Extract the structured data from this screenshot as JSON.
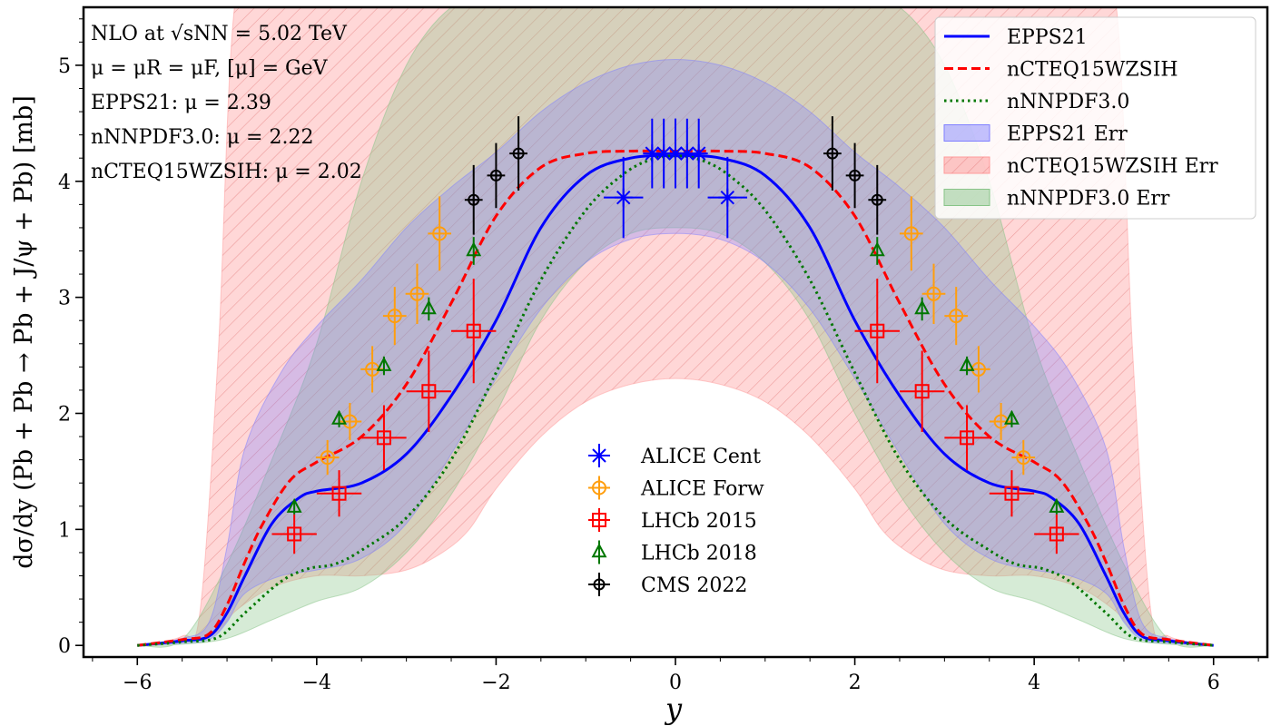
{
  "chart_data": {
    "type": "line",
    "title": "",
    "xlabel": "y",
    "ylabel": "dσ/dy (Pb + Pb → Pb + J/ψ + Pb) [mb]",
    "xlim": [
      -6.6,
      6.6
    ],
    "ylim": [
      -0.1,
      5.5
    ],
    "xticks": [
      -6,
      -4,
      -2,
      0,
      2,
      4,
      6
    ],
    "yticks": [
      0,
      1,
      2,
      3,
      4,
      5
    ],
    "xtick_labels": [
      "−6",
      "−4",
      "−2",
      "0",
      "2",
      "4",
      "6"
    ],
    "ytick_labels": [
      "0",
      "1",
      "2",
      "3",
      "4",
      "5"
    ],
    "annotations": [
      "NLO at √sNN = 5.02 TeV",
      "μ = μR = μF, [μ] = GeV",
      "EPPS21: μ = 2.39",
      "nNNPDF3.0: μ = 2.22",
      "nCTEQ15WZSIH: μ = 2.02"
    ],
    "curves": [
      {
        "name": "EPPS21",
        "color": "#0000ff",
        "style": "solid",
        "x": [
          0,
          0.5,
          1.0,
          1.5,
          2.0,
          2.5,
          3.0,
          3.5,
          4.0,
          4.2,
          4.5,
          4.8,
          5.0,
          5.2,
          5.5,
          6.0
        ],
        "y": [
          4.22,
          4.2,
          4.05,
          3.6,
          2.8,
          2.15,
          1.65,
          1.4,
          1.33,
          1.27,
          1.05,
          0.6,
          0.28,
          0.08,
          0.04,
          0.0
        ]
      },
      {
        "name": "nCTEQ15WZSIH",
        "color": "#ff0000",
        "style": "dashed",
        "x": [
          0,
          0.5,
          1.0,
          1.5,
          2.0,
          2.5,
          3.0,
          3.5,
          4.0,
          4.3,
          4.6,
          4.8,
          5.0,
          5.2,
          5.5,
          6.0
        ],
        "y": [
          4.26,
          4.26,
          4.24,
          4.12,
          3.7,
          2.95,
          2.25,
          1.8,
          1.58,
          1.42,
          1.05,
          0.72,
          0.35,
          0.1,
          0.05,
          0.0
        ]
      },
      {
        "name": "nNNPDF3.0",
        "color": "#007700",
        "style": "dotted",
        "x": [
          0,
          0.3,
          0.6,
          1.0,
          1.5,
          2.0,
          2.5,
          3.0,
          3.5,
          3.8,
          4.1,
          4.4,
          4.8,
          5.1,
          5.5,
          6.0
        ],
        "y": [
          4.22,
          4.18,
          4.05,
          3.75,
          3.15,
          2.35,
          1.6,
          1.1,
          0.82,
          0.7,
          0.66,
          0.55,
          0.28,
          0.07,
          0.03,
          0.0
        ]
      }
    ],
    "bands": [
      {
        "name": "EPPS21 Err",
        "color": "#8080ff",
        "opacity": 0.32,
        "hatch": false,
        "x": [
          0,
          0.5,
          1.0,
          1.5,
          2.0,
          2.5,
          3.0,
          3.5,
          4.0,
          4.4,
          4.8,
          5.0,
          5.2,
          5.5,
          6.0
        ],
        "upper": [
          5.05,
          5.0,
          4.85,
          4.6,
          4.25,
          3.95,
          3.6,
          3.15,
          2.75,
          2.35,
          1.7,
          0.85,
          0.2,
          0.06,
          0.0
        ],
        "lower": [
          3.55,
          3.5,
          3.3,
          2.9,
          2.3,
          1.65,
          1.05,
          0.75,
          0.65,
          0.6,
          0.45,
          0.2,
          0.05,
          0.02,
          0.0
        ]
      },
      {
        "name": "nCTEQ15WZSIH Err",
        "color": "#ff9a9a",
        "opacity": 0.4,
        "hatch": true,
        "x": [
          0,
          0.5,
          1.0,
          1.5,
          2.0,
          2.3,
          2.6,
          3.0,
          3.5,
          4.0,
          4.5,
          4.9,
          5.1,
          5.3,
          5.5,
          6.0
        ],
        "upper": [
          5.6,
          5.6,
          5.6,
          5.6,
          5.6,
          5.6,
          5.6,
          5.6,
          5.6,
          5.6,
          5.6,
          5.6,
          2.5,
          0.3,
          0.08,
          0.0
        ],
        "lower": [
          2.3,
          2.25,
          2.1,
          1.8,
          1.35,
          1.0,
          0.8,
          0.65,
          0.6,
          0.6,
          0.5,
          0.3,
          0.12,
          0.05,
          0.03,
          0.0
        ]
      },
      {
        "name": "nNNPDF3.0 Err",
        "color": "#88c488",
        "opacity": 0.34,
        "hatch": false,
        "x": [
          0,
          0.5,
          1.0,
          1.5,
          2.0,
          2.5,
          3.0,
          3.5,
          4.0,
          4.5,
          5.0,
          5.5,
          6.0
        ],
        "upper": [
          5.6,
          5.6,
          5.6,
          5.6,
          5.6,
          5.5,
          5.0,
          4.0,
          2.6,
          1.6,
          0.7,
          0.05,
          0.0
        ],
        "lower": [
          3.6,
          3.55,
          3.3,
          2.8,
          2.0,
          1.3,
          0.8,
          0.5,
          0.38,
          0.22,
          0.06,
          0.01,
          0.0
        ]
      }
    ],
    "datasets": [
      {
        "name": "ALICE Cent",
        "color": "#0000ff",
        "marker": "star",
        "points": [
          {
            "x": 0.0,
            "xerr": 0.0,
            "y": 4.24,
            "yerr": 0.3
          },
          {
            "x": 0.13,
            "xerr": 0.0,
            "y": 4.24,
            "yerr": 0.3
          },
          {
            "x": 0.26,
            "xerr": 0.0,
            "y": 4.24,
            "yerr": 0.3
          },
          {
            "x": 0.58,
            "xerr": 0.22,
            "y": 3.86,
            "yerr": 0.35
          }
        ]
      },
      {
        "name": "ALICE Forw",
        "color": "#ff9e0e",
        "marker": "circle",
        "points": [
          {
            "x": 2.63,
            "xerr": 0.13,
            "y": 3.55,
            "yerr": 0.32
          },
          {
            "x": 2.88,
            "xerr": 0.13,
            "y": 3.03,
            "yerr": 0.26
          },
          {
            "x": 3.13,
            "xerr": 0.13,
            "y": 2.84,
            "yerr": 0.25
          },
          {
            "x": 3.38,
            "xerr": 0.13,
            "y": 2.38,
            "yerr": 0.2
          },
          {
            "x": 3.63,
            "xerr": 0.13,
            "y": 1.93,
            "yerr": 0.16
          },
          {
            "x": 3.88,
            "xerr": 0.13,
            "y": 1.62,
            "yerr": 0.15
          }
        ]
      },
      {
        "name": "LHCb 2015",
        "color": "#ff0000",
        "marker": "square",
        "points": [
          {
            "x": 2.25,
            "xerr": 0.25,
            "y": 2.71,
            "yerr": 0.45
          },
          {
            "x": 2.75,
            "xerr": 0.25,
            "y": 2.19,
            "yerr": 0.35
          },
          {
            "x": 3.25,
            "xerr": 0.25,
            "y": 1.79,
            "yerr": 0.28
          },
          {
            "x": 3.75,
            "xerr": 0.25,
            "y": 1.31,
            "yerr": 0.2
          },
          {
            "x": 4.25,
            "xerr": 0.25,
            "y": 0.96,
            "yerr": 0.17
          }
        ]
      },
      {
        "name": "LHCb 2018",
        "color": "#007700",
        "marker": "triangle",
        "points": [
          {
            "x": 2.25,
            "xerr": 0.0,
            "y": 3.4,
            "yerr": 0.12
          },
          {
            "x": 2.75,
            "xerr": 0.0,
            "y": 2.9,
            "yerr": 0.1
          },
          {
            "x": 3.25,
            "xerr": 0.0,
            "y": 2.41,
            "yerr": 0.08
          },
          {
            "x": 3.75,
            "xerr": 0.0,
            "y": 1.95,
            "yerr": 0.07
          },
          {
            "x": 4.25,
            "xerr": 0.0,
            "y": 1.19,
            "yerr": 0.06
          }
        ]
      },
      {
        "name": "CMS 2022",
        "color": "#000000",
        "marker": "plus",
        "points": [
          {
            "x": 1.75,
            "xerr": 0.1,
            "y": 4.24,
            "yerr": 0.32
          },
          {
            "x": 2.0,
            "xerr": 0.1,
            "y": 4.05,
            "yerr": 0.28
          },
          {
            "x": 2.25,
            "xerr": 0.1,
            "y": 3.84,
            "yerr": 0.3
          }
        ]
      }
    ],
    "legend_upper": [
      "EPPS21",
      "nCTEQ15WZSIH",
      "nNNPDF3.0",
      "EPPS21 Err",
      "nCTEQ15WZSIH Err",
      "nNNPDF3.0 Err"
    ],
    "legend_upper_position": "top-right",
    "legend_lower": [
      "ALICE Cent",
      "ALICE Forw",
      "LHCb 2015",
      "LHCb 2018",
      "CMS 2022"
    ],
    "legend_lower_position": "lower-center",
    "symmetric": "mirrored about y = 0 (data and curves shown for both +y and −y)"
  }
}
